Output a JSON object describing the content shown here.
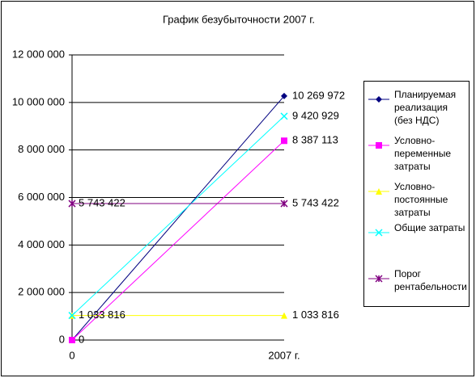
{
  "chart_data": {
    "type": "line",
    "title": "График безубыточности 2007 г.",
    "categories": [
      "0",
      "2007 г."
    ],
    "ylim": [
      0,
      12000000
    ],
    "yticks": [
      {
        "value": 0,
        "label": "0"
      },
      {
        "value": 2000000,
        "label": "2 000 000"
      },
      {
        "value": 4000000,
        "label": "4 000 000"
      },
      {
        "value": 6000000,
        "label": "6 000 000"
      },
      {
        "value": 8000000,
        "label": "8 000 000"
      },
      {
        "value": 10000000,
        "label": "10 000 000"
      },
      {
        "value": 12000000,
        "label": "12 000 000"
      }
    ],
    "grid": true,
    "legend": "right",
    "series": [
      {
        "name": "Планируемая реализация (без НДС)",
        "color": "#000080",
        "marker": "diamond",
        "values": [
          0,
          10269972
        ],
        "value_labels": [
          "0",
          "10 269 972"
        ]
      },
      {
        "name": "Условно-переменные затраты",
        "color": "#ff00ff",
        "marker": "square",
        "values": [
          0,
          8387113
        ],
        "value_labels": [
          null,
          "8 387 113"
        ]
      },
      {
        "name": "Условно-постоянные затраты",
        "color": "#ffff00",
        "marker": "triangle",
        "values": [
          1033816,
          1033816
        ],
        "value_labels": [
          "1 033 816",
          "1 033 816"
        ]
      },
      {
        "name": "Общие затраты",
        "color": "#00ffff",
        "marker": "x",
        "values": [
          1033816,
          9420929
        ],
        "value_labels": [
          null,
          "9 420 929"
        ]
      },
      {
        "name": "Порог рентабельности",
        "color": "#800080",
        "marker": "star",
        "values": [
          5743422,
          5743422
        ],
        "value_labels": [
          "5 743 422",
          "5 743 422"
        ]
      }
    ]
  }
}
